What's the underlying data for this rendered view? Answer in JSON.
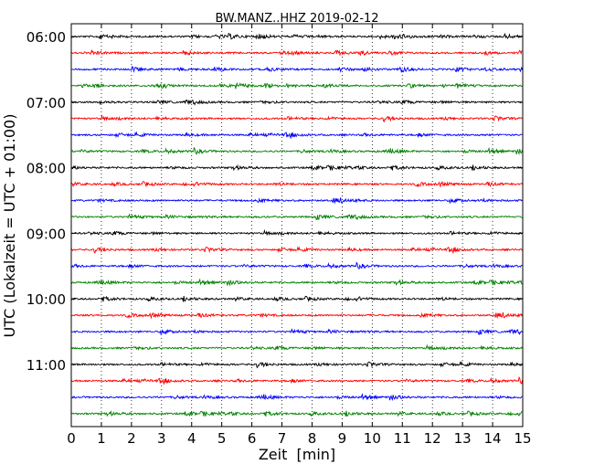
{
  "chart_data": {
    "type": "line",
    "title": "BW.MANZ..HHZ 2019-02-12",
    "xlabel": "Zeit  [min]",
    "ylabel": "UTC (Lokalzeit = UTC + 01:00)",
    "xlim": [
      0,
      15
    ],
    "x_ticks": [
      "0",
      "1",
      "2",
      "3",
      "4",
      "5",
      "6",
      "7",
      "8",
      "9",
      "10",
      "11",
      "12",
      "13",
      "14",
      "15"
    ],
    "y_tick_labels": [
      "06:00",
      "07:00",
      "08:00",
      "09:00",
      "10:00",
      "11:00"
    ],
    "grid": "vertical dotted",
    "trace_start_times": [
      "06:00",
      "06:15",
      "06:30",
      "06:45",
      "07:00",
      "07:15",
      "07:30",
      "07:45",
      "08:00",
      "08:15",
      "08:30",
      "08:45",
      "09:00",
      "09:15",
      "09:30",
      "09:45",
      "10:00",
      "10:15",
      "10:30",
      "10:45",
      "11:00",
      "11:15",
      "11:30",
      "11:45"
    ],
    "trace_colors": [
      "#000000",
      "#ff0000",
      "#0000ff",
      "#008000"
    ]
  }
}
